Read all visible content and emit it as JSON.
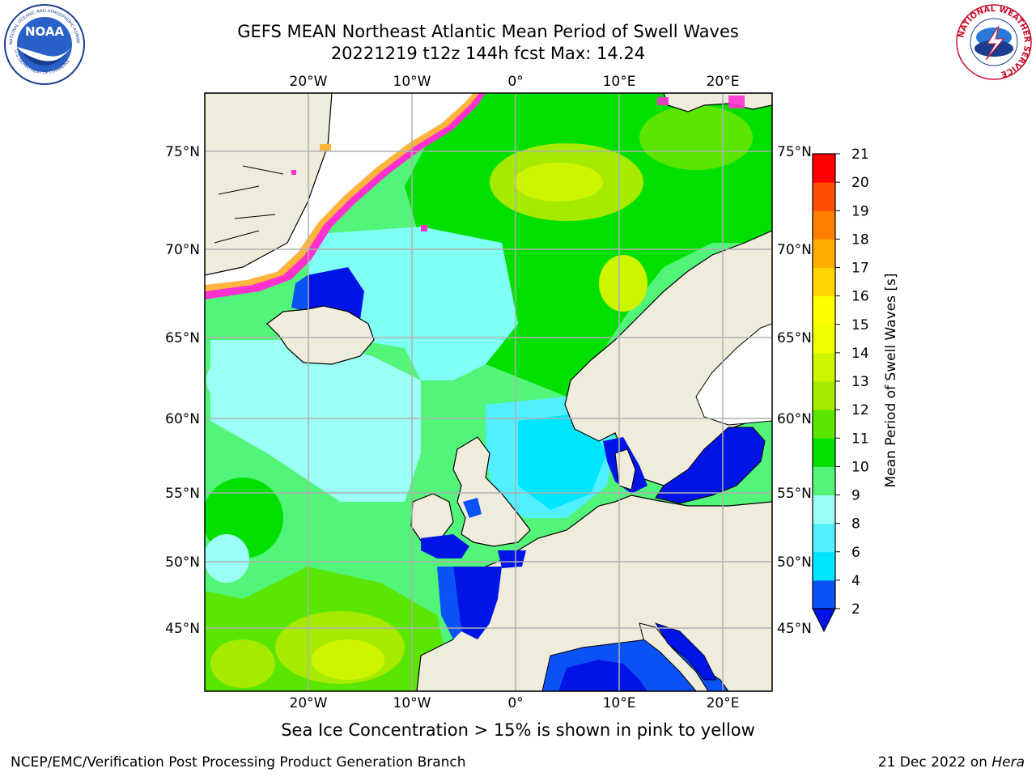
{
  "title": {
    "line1": "GEFS MEAN Northeast Atlantic Mean Period of Swell Waves",
    "line2": "20221219 t12z 144h fcst   Max: 14.24"
  },
  "axes": {
    "lon_ticks": [
      "20°W",
      "10°W",
      "0°",
      "10°E",
      "20°E"
    ],
    "lat_ticks": [
      "75°N",
      "70°N",
      "65°N",
      "60°N",
      "55°N",
      "50°N",
      "45°N"
    ]
  },
  "colorbar": {
    "label": "Mean Period of Swell Waves [s]",
    "ticks": [
      "2",
      "4",
      "6",
      "8",
      "9",
      "10",
      "11",
      "12",
      "13",
      "14",
      "15",
      "16",
      "17",
      "18",
      "19",
      "20",
      "21"
    ],
    "colors": [
      "#0a52f5",
      "#00e6ff",
      "#52f0ff",
      "#9cfff5",
      "#52f57a",
      "#00e000",
      "#5ae600",
      "#a6ea00",
      "#cdf500",
      "#f0ff00",
      "#ffff00",
      "#ffd400",
      "#ffae00",
      "#ff8000",
      "#ff4d00",
      "#ff0000"
    ],
    "under_color": "#0014e6"
  },
  "palette": {
    "land": "#efecdc",
    "ice_pink": "#ff30d0",
    "ice_orange": "#ffb43c",
    "ocean_cyan": "#80fff5"
  },
  "note": "Sea Ice Concentration > 15% is shown in pink to yellow",
  "footer": {
    "left": "NCEP/EMC/Verification Post Processing Product Generation Branch",
    "date": "21 Dec 2022 on ",
    "host": "Hera"
  },
  "logos": {
    "noaa_text": "NOAA",
    "noaa_ring": "NATIONAL OCEANIC AND ATMOSPHERIC ADMINISTRATION",
    "noaa_ring_bottom": "U.S. DEPARTMENT OF COMMERCE",
    "nws_ring": "NATIONAL WEATHER SERVICE"
  }
}
